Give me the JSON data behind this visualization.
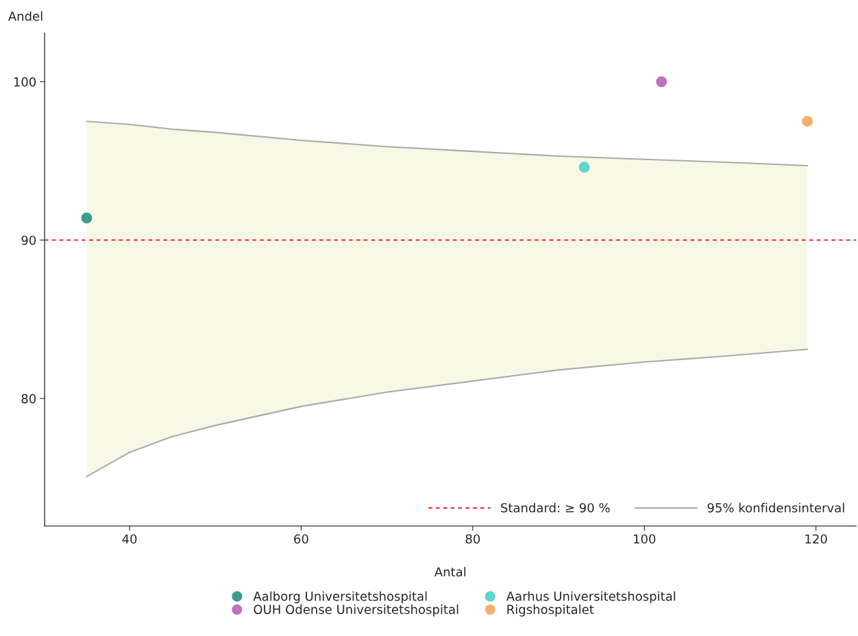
{
  "chart_data": {
    "type": "scatter",
    "xlabel": "Antal",
    "ylabel": "Andel",
    "xlim": [
      30.1,
      124.7
    ],
    "xticks": [
      40,
      60,
      80,
      100,
      120
    ],
    "ylim": [
      71.95,
      103.07
    ],
    "yticks": [
      80,
      90,
      100
    ],
    "grid": false,
    "legend": "bottom",
    "marker": "circle",
    "series": [
      {
        "name": "95% konfidensinterval",
        "type": "line",
        "marker": "none",
        "color": "#aaaaaa",
        "x": [
          35,
          40,
          45,
          50,
          60,
          70,
          80,
          90,
          100,
          110,
          119
        ],
        "values": [
          97.5,
          97.3,
          97.0,
          96.8,
          96.3,
          95.9,
          95.6,
          95.3,
          95.1,
          94.9,
          94.7
        ],
        "upper": [
          97.5,
          97.3,
          97.0,
          96.8,
          96.3,
          95.9,
          95.6,
          95.3,
          95.1,
          94.9,
          94.7
        ],
        "lower": [
          75.07,
          76.6,
          77.6,
          78.3,
          79.5,
          80.4,
          81.1,
          81.8,
          82.3,
          82.7,
          83.1
        ]
      },
      {
        "type": "line",
        "marker": "none",
        "color": "#aaaaaa",
        "x": [
          35,
          40,
          45,
          50,
          60,
          70,
          80,
          90,
          100,
          110,
          119
        ],
        "values": [
          75.07,
          76.6,
          77.6,
          78.3,
          79.5,
          80.4,
          81.1,
          81.8,
          82.3,
          82.7,
          83.1
        ]
      },
      {
        "name": "Aalborg Universitetshospital",
        "color": "#3a9e8a",
        "x": [
          35
        ],
        "values": [
          91.4
        ]
      },
      {
        "name": "OUH Odense Universitetshospital",
        "color": "#c072c0",
        "x": [
          102
        ],
        "values": [
          100
        ]
      },
      {
        "name": "Aarhus Universitetshospital",
        "color": "#5fd6cf",
        "x": [
          93
        ],
        "values": [
          94.6
        ]
      },
      {
        "name": "Rigshospitalet",
        "color": "#f7b06f",
        "x": [
          119
        ],
        "values": [
          97.5
        ]
      }
    ],
    "ref_lines": [
      {
        "axis": "y",
        "value": 90,
        "label": "Standard: ≥ 90 %",
        "color": "#ff0000",
        "line_style": "dashed"
      }
    ]
  }
}
